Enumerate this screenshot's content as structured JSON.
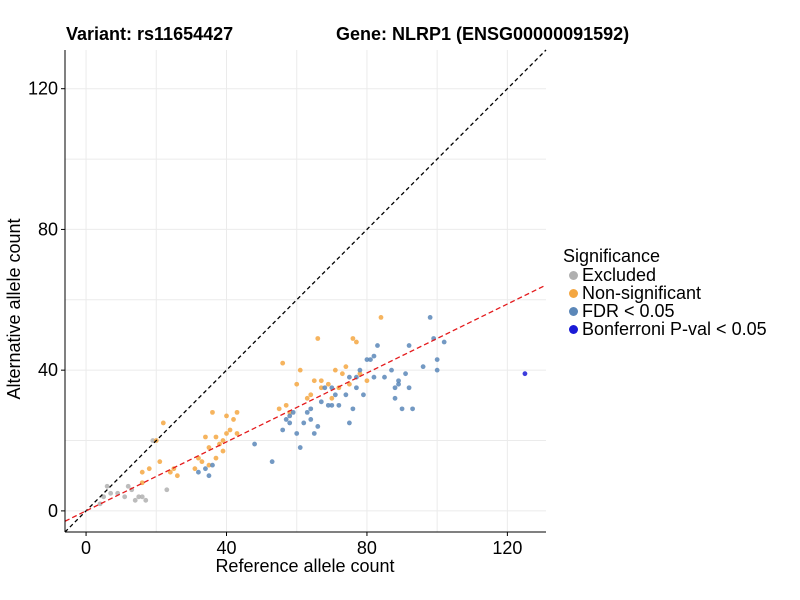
{
  "chart_data": {
    "type": "scatter",
    "title_variant": "Variant: rs11654427",
    "title_gene": "Gene: NLRP1 (ENSG00000091592)",
    "xlabel": "Reference allele count",
    "ylabel": "Alternative allele count",
    "xlim": [
      -6,
      131
    ],
    "ylim": [
      -6,
      131
    ],
    "xticks": [
      0,
      40,
      80,
      120
    ],
    "yticks": [
      0,
      40,
      80,
      120
    ],
    "grid": true,
    "reference_line": {
      "label": "y = x",
      "slope": 1,
      "intercept": 0,
      "color": "#000000",
      "dash": "4,3"
    },
    "fit_line": {
      "label": "fit",
      "slope": 0.49,
      "intercept": 0,
      "color": "#e41a1c",
      "dash": "5,3"
    },
    "legend": {
      "title": "Significance",
      "position": "right",
      "items": [
        {
          "label": "Excluded",
          "color": "#b0b0b0"
        },
        {
          "label": "Non-significant",
          "color": "#f4a742"
        },
        {
          "label": "FDR < 0.05",
          "color": "#5b87b8"
        },
        {
          "label": "Bonferroni P-val < 0.05",
          "color": "#1a1ad6"
        }
      ]
    },
    "series": [
      {
        "name": "Excluded",
        "color": "#b0b0b0",
        "points": [
          [
            4,
            2
          ],
          [
            5,
            4
          ],
          [
            6,
            7
          ],
          [
            7,
            5
          ],
          [
            9,
            5
          ],
          [
            11,
            4
          ],
          [
            12,
            7
          ],
          [
            13,
            6
          ],
          [
            14,
            3
          ],
          [
            15,
            4
          ],
          [
            16,
            4
          ],
          [
            17,
            3
          ],
          [
            19,
            20
          ],
          [
            23,
            6
          ]
        ]
      },
      {
        "name": "Non-significant",
        "color": "#f4a742",
        "points": [
          [
            16,
            11
          ],
          [
            16,
            8
          ],
          [
            18,
            12
          ],
          [
            20,
            20
          ],
          [
            21,
            14
          ],
          [
            22,
            25
          ],
          [
            24,
            11
          ],
          [
            25,
            12
          ],
          [
            26,
            10
          ],
          [
            31,
            12
          ],
          [
            32,
            15
          ],
          [
            33,
            14
          ],
          [
            34,
            21
          ],
          [
            35,
            18
          ],
          [
            35,
            13
          ],
          [
            36,
            28
          ],
          [
            37,
            21
          ],
          [
            37,
            15
          ],
          [
            38,
            19
          ],
          [
            39,
            20
          ],
          [
            39,
            17
          ],
          [
            40,
            27
          ],
          [
            40,
            22
          ],
          [
            41,
            23
          ],
          [
            42,
            26
          ],
          [
            43,
            22
          ],
          [
            43,
            28
          ],
          [
            55,
            29
          ],
          [
            56,
            42
          ],
          [
            57,
            30
          ],
          [
            58,
            28
          ],
          [
            60,
            36
          ],
          [
            61,
            40
          ],
          [
            63,
            32
          ],
          [
            64,
            33
          ],
          [
            65,
            37
          ],
          [
            66,
            49
          ],
          [
            67,
            37
          ],
          [
            67,
            35
          ],
          [
            69,
            36
          ],
          [
            70,
            32
          ],
          [
            71,
            40
          ],
          [
            72,
            35
          ],
          [
            73,
            39
          ],
          [
            74,
            41
          ],
          [
            75,
            36
          ],
          [
            76,
            49
          ],
          [
            77,
            48
          ],
          [
            78,
            39
          ],
          [
            80,
            37
          ],
          [
            84,
            55
          ]
        ]
      },
      {
        "name": "FDR < 0.05",
        "color": "#5b87b8",
        "points": [
          [
            32,
            11
          ],
          [
            34,
            12
          ],
          [
            35,
            10
          ],
          [
            36,
            13
          ],
          [
            48,
            19
          ],
          [
            53,
            14
          ],
          [
            56,
            23
          ],
          [
            57,
            26
          ],
          [
            58,
            27
          ],
          [
            58,
            25
          ],
          [
            59,
            28
          ],
          [
            60,
            22
          ],
          [
            61,
            18
          ],
          [
            62,
            25
          ],
          [
            63,
            28
          ],
          [
            64,
            26
          ],
          [
            64,
            29
          ],
          [
            65,
            22
          ],
          [
            66,
            24
          ],
          [
            67,
            31
          ],
          [
            68,
            35
          ],
          [
            69,
            30
          ],
          [
            70,
            30
          ],
          [
            70,
            35
          ],
          [
            71,
            33
          ],
          [
            72,
            30
          ],
          [
            74,
            33
          ],
          [
            75,
            25
          ],
          [
            75,
            38
          ],
          [
            76,
            29
          ],
          [
            77,
            38
          ],
          [
            77,
            35
          ],
          [
            78,
            40
          ],
          [
            79,
            33
          ],
          [
            80,
            43
          ],
          [
            81,
            43
          ],
          [
            82,
            38
          ],
          [
            82,
            44
          ],
          [
            83,
            47
          ],
          [
            85,
            38
          ],
          [
            87,
            40
          ],
          [
            88,
            35
          ],
          [
            88,
            32
          ],
          [
            89,
            36
          ],
          [
            89,
            37
          ],
          [
            90,
            29
          ],
          [
            91,
            39
          ],
          [
            92,
            47
          ],
          [
            92,
            35
          ],
          [
            93,
            29
          ],
          [
            96,
            41
          ],
          [
            98,
            55
          ],
          [
            99,
            49
          ],
          [
            100,
            43
          ],
          [
            100,
            40
          ],
          [
            102,
            48
          ]
        ]
      },
      {
        "name": "Bonferroni P-val < 0.05",
        "color": "#1a1ad6",
        "points": [
          [
            125,
            39
          ]
        ]
      }
    ]
  }
}
